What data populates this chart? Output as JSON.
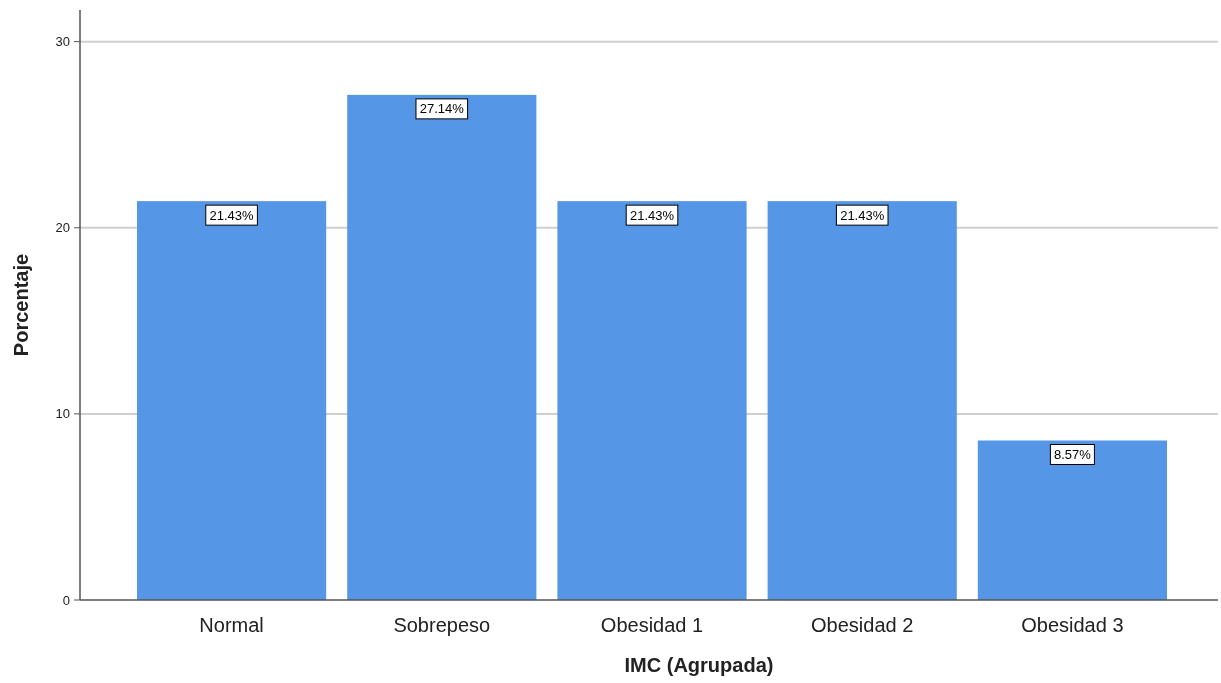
{
  "chart_data": {
    "type": "bar",
    "xlabel": "IMC (Agrupada)",
    "ylabel": "Porcentaje",
    "categories": [
      "Normal",
      "Sobrepeso",
      "Obesidad 1",
      "Obesidad 2",
      "Obesidad 3"
    ],
    "values": [
      21.43,
      27.14,
      21.43,
      21.43,
      8.57
    ],
    "value_labels": [
      "21.43%",
      "27.14%",
      "21.43%",
      "21.43%",
      "8.57%"
    ],
    "color": "#5596e6",
    "ylim": [
      0,
      31.7
    ],
    "yticks": [
      0,
      10,
      20,
      30
    ],
    "grid": "y"
  }
}
